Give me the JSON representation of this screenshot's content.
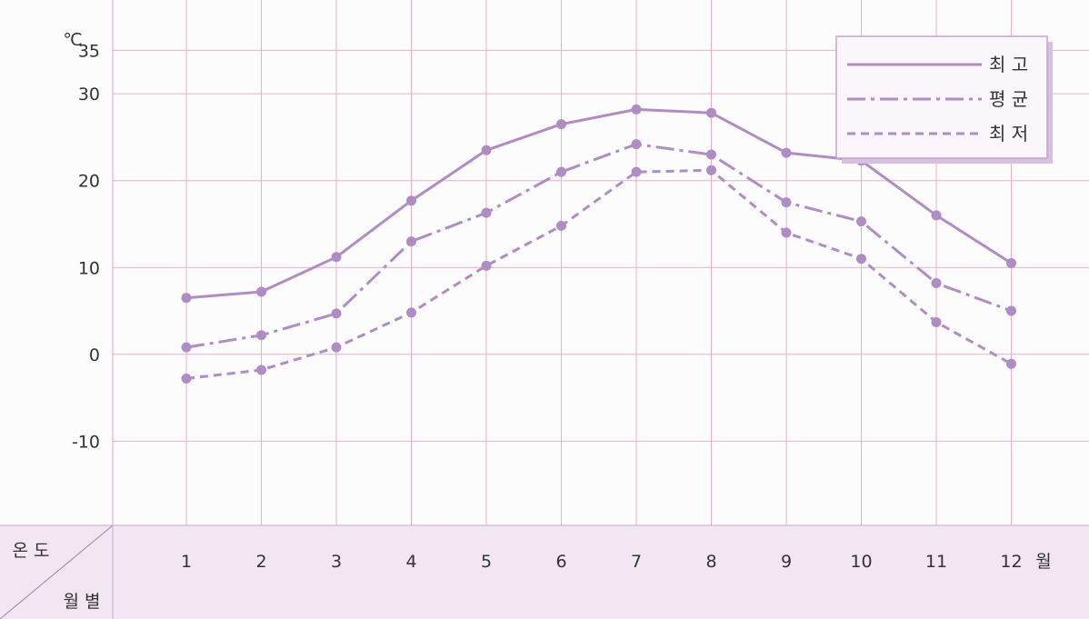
{
  "chart_data": {
    "type": "line",
    "unit": "℃",
    "categories": [
      "1",
      "2",
      "3",
      "4",
      "5",
      "6",
      "7",
      "8",
      "9",
      "10",
      "11",
      "12"
    ],
    "month_suffix": "월",
    "series": [
      {
        "name": "최 고",
        "style": "solid",
        "values": [
          6.5,
          7.2,
          11.2,
          17.7,
          23.5,
          26.5,
          28.2,
          27.8,
          23.2,
          22.3,
          16,
          10.5
        ]
      },
      {
        "name": "평 균",
        "style": "dashdot",
        "values": [
          0.8,
          2.2,
          4.7,
          13,
          16.3,
          21,
          24.2,
          23,
          17.5,
          15.3,
          8.2,
          5
        ]
      },
      {
        "name": "최 저",
        "style": "dashed",
        "values": [
          -2.8,
          -1.8,
          0.8,
          4.8,
          10.2,
          14.8,
          21,
          21.2,
          14,
          11,
          3.7,
          -1.1
        ]
      }
    ],
    "y_ticks": [
      "35",
      "30",
      "20",
      "10",
      "0",
      "-10"
    ],
    "ylim": [
      -19.7,
      40.8
    ],
    "grid": true,
    "legend_position": "top-right",
    "corner_header": {
      "top": "온 도",
      "bottom": "월 별"
    },
    "colors": {
      "line": "#b08cc4",
      "grid": "#e6b0c8",
      "band": "#f2e6f2",
      "frame": "#c6a0d2"
    }
  }
}
